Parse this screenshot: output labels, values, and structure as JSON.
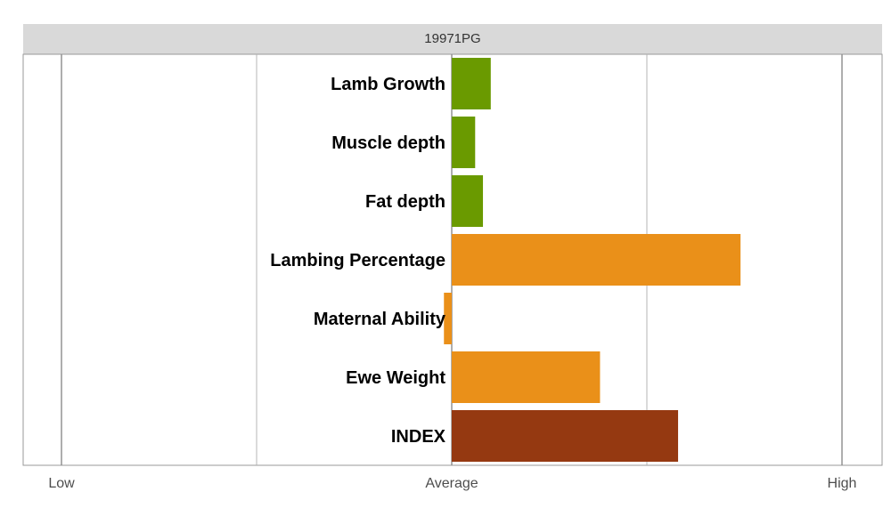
{
  "chart_data": {
    "type": "bar",
    "orientation": "horizontal",
    "panel_title": "19971PG",
    "categories": [
      "Lamb Growth",
      "Muscle depth",
      "Fat depth",
      "Lambing Percentage",
      "Maternal Ability",
      "Ewe Weight",
      "INDEX"
    ],
    "values": [
      0.1,
      0.06,
      0.08,
      0.74,
      -0.02,
      0.38,
      0.58
    ],
    "bar_colors": [
      "#6a9a00",
      "#6a9a00",
      "#6a9a00",
      "#ea9019",
      "#ea9019",
      "#ea9019",
      "#953911"
    ],
    "xlim": [
      -1,
      1
    ],
    "x_ticks": [
      {
        "value": -1,
        "label": "Low"
      },
      {
        "value": 0,
        "label": "Average"
      },
      {
        "value": 1,
        "label": "High"
      }
    ],
    "gridlines": [
      -1,
      -0.5,
      0,
      0.5,
      1
    ],
    "grid": true,
    "legend": "none"
  }
}
